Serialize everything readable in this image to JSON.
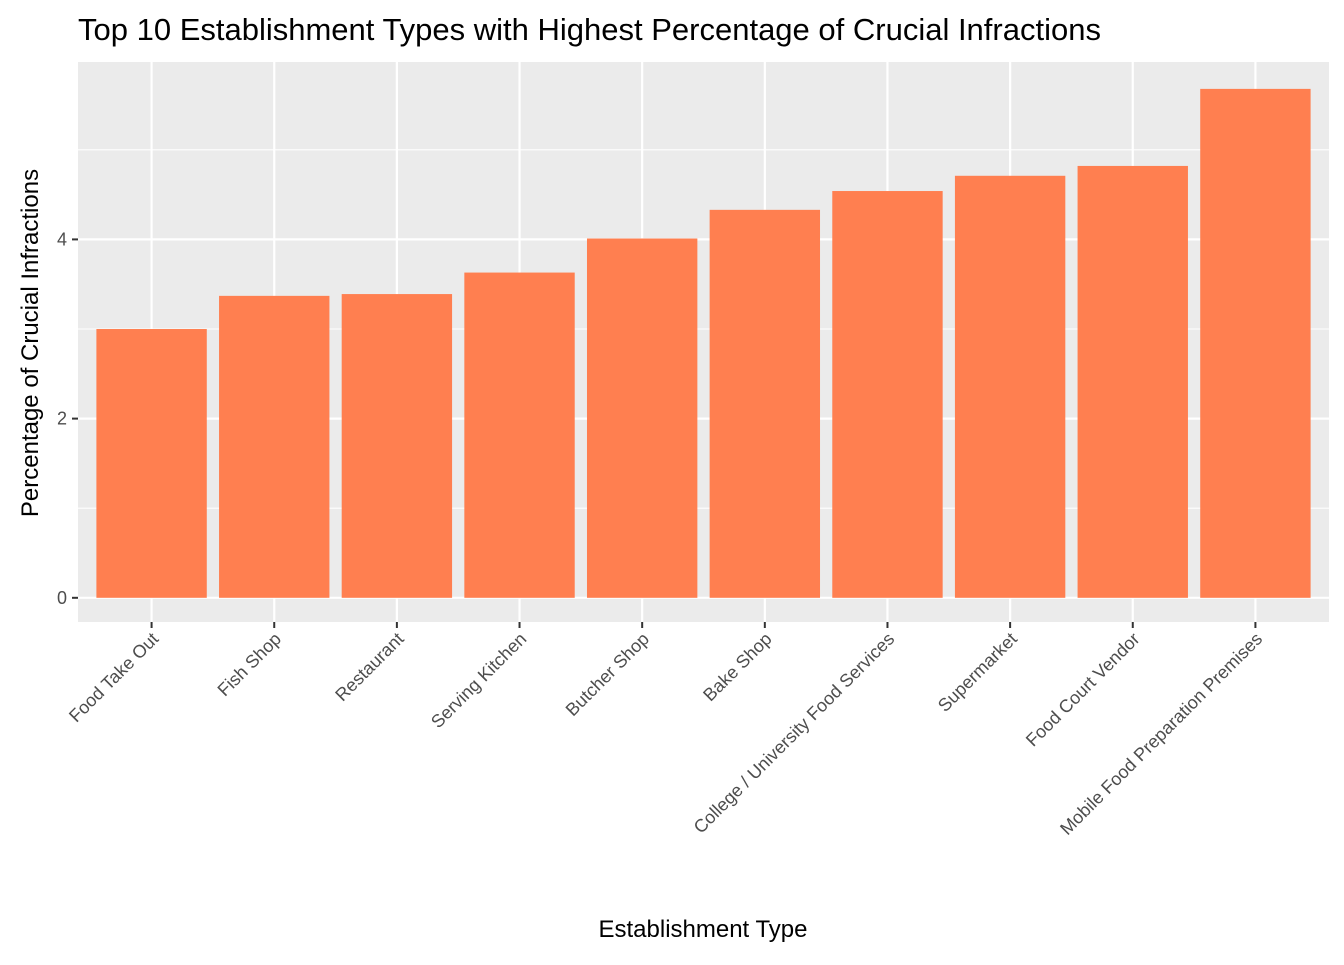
{
  "chart_data": {
    "type": "bar",
    "title": "Top 10 Establishment Types with Highest Percentage of Crucial Infractions",
    "xlabel": "Establishment Type",
    "ylabel": "Percentage of Crucial Infractions",
    "categories": [
      "Food Take Out",
      "Fish Shop",
      "Restaurant",
      "Serving Kitchen",
      "Butcher Shop",
      "Bake Shop",
      "College / University Food Services",
      "Supermarket",
      "Food Court Vendor",
      "Mobile Food Preparation Premises"
    ],
    "values": [
      3.0,
      3.37,
      3.39,
      3.63,
      4.01,
      4.33,
      4.54,
      4.71,
      4.82,
      5.68
    ],
    "ylim": [
      -0.27,
      5.98
    ],
    "y_ticks": [
      0,
      2,
      4
    ],
    "grid": true,
    "legend": "none",
    "colors": {
      "bar": "#ff7f50",
      "panel": "#ebebeb",
      "grid": "#ffffff"
    }
  }
}
